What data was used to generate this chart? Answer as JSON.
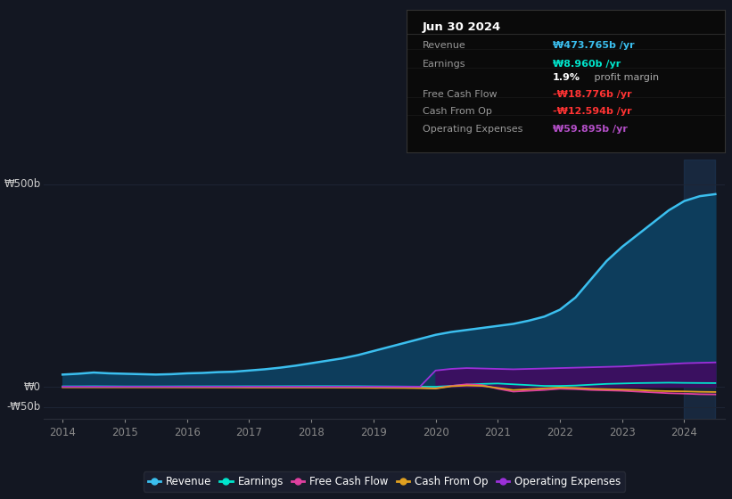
{
  "bg_color": "#131722",
  "grid_color": "#1e2535",
  "years": [
    2014.0,
    2014.25,
    2014.5,
    2014.75,
    2015.0,
    2015.25,
    2015.5,
    2015.75,
    2016.0,
    2016.25,
    2016.5,
    2016.75,
    2017.0,
    2017.25,
    2017.5,
    2017.75,
    2018.0,
    2018.25,
    2018.5,
    2018.75,
    2019.0,
    2019.25,
    2019.5,
    2019.75,
    2020.0,
    2020.25,
    2020.5,
    2020.75,
    2021.0,
    2021.25,
    2021.5,
    2021.75,
    2022.0,
    2022.25,
    2022.5,
    2022.75,
    2023.0,
    2023.25,
    2023.5,
    2023.75,
    2024.0,
    2024.25,
    2024.5
  ],
  "revenue": [
    30,
    32,
    35,
    33,
    32,
    31,
    30,
    31,
    33,
    34,
    36,
    37,
    40,
    43,
    47,
    52,
    58,
    64,
    70,
    78,
    88,
    98,
    108,
    118,
    128,
    135,
    140,
    145,
    150,
    155,
    163,
    173,
    190,
    220,
    265,
    310,
    345,
    375,
    405,
    435,
    458,
    470,
    475
  ],
  "earnings": [
    1.0,
    1.0,
    1.2,
    1.0,
    0.8,
    0.8,
    0.8,
    0.9,
    1.0,
    1.0,
    1.1,
    1.1,
    1.2,
    1.2,
    1.3,
    1.4,
    1.5,
    1.5,
    1.4,
    1.3,
    1.0,
    0.8,
    0.5,
    0.2,
    0.0,
    2.0,
    5.0,
    7.0,
    8.0,
    6.0,
    4.0,
    2.0,
    2.0,
    3.0,
    5.0,
    7.0,
    8.0,
    9.0,
    9.5,
    10.0,
    9.5,
    9.2,
    9.0
  ],
  "free_cash_flow": [
    -0.5,
    -0.5,
    -0.5,
    -0.6,
    -0.6,
    -0.6,
    -0.7,
    -0.7,
    -0.8,
    -0.8,
    -0.9,
    -0.9,
    -1.0,
    -1.0,
    -1.0,
    -1.0,
    -1.0,
    -1.0,
    -1.1,
    -1.2,
    -1.5,
    -1.8,
    -2.0,
    -2.5,
    -4.0,
    2.0,
    6.0,
    4.0,
    -5.0,
    -12.0,
    -10.0,
    -8.0,
    -5.0,
    -6.0,
    -8.0,
    -9.0,
    -10.0,
    -12.0,
    -14.0,
    -16.0,
    -17.0,
    -18.5,
    -19.0
  ],
  "cash_from_op": [
    -1.5,
    -1.5,
    -1.5,
    -1.5,
    -1.5,
    -1.5,
    -1.5,
    -1.6,
    -1.6,
    -1.7,
    -1.7,
    -1.8,
    -2.0,
    -2.0,
    -2.0,
    -2.0,
    -2.0,
    -2.0,
    -2.1,
    -2.2,
    -2.5,
    -2.8,
    -3.0,
    -3.5,
    -4.5,
    1.0,
    3.0,
    2.0,
    -3.0,
    -8.0,
    -6.0,
    -4.0,
    -2.0,
    -3.0,
    -5.0,
    -6.0,
    -7.0,
    -8.0,
    -10.0,
    -11.0,
    -11.5,
    -12.5,
    -13.0
  ],
  "operating_expenses": [
    0.3,
    0.3,
    0.3,
    0.3,
    0.3,
    0.3,
    0.3,
    0.3,
    0.3,
    0.3,
    0.3,
    0.3,
    0.3,
    0.3,
    0.3,
    0.3,
    0.3,
    0.3,
    0.3,
    0.3,
    0.3,
    0.3,
    0.3,
    0.3,
    40.0,
    44.0,
    46.0,
    45.0,
    44.0,
    43.0,
    44.0,
    45.0,
    46.0,
    47.0,
    48.0,
    49.0,
    50.0,
    52.0,
    54.0,
    56.0,
    58.0,
    59.0,
    60.0
  ],
  "revenue_color": "#3bbfef",
  "revenue_fill": "#0d3d5c",
  "earnings_color": "#00e5cc",
  "fcf_color": "#e040a0",
  "cfo_color": "#e0a020",
  "opex_color": "#9b30d9",
  "opex_fill": "#3a1060",
  "highlight_x_start": 2024.0,
  "highlight_x_end": 2024.5,
  "highlight_color": "#1e3a5a",
  "ylim": [
    -80,
    560
  ],
  "xlim_left": 2013.7,
  "xlim_right": 2024.65,
  "ytick_positions": [
    500,
    0,
    -50
  ],
  "ytick_labels": [
    "₩500b",
    "₩0",
    "-₩50b"
  ],
  "xtick_years": [
    2014,
    2015,
    2016,
    2017,
    2018,
    2019,
    2020,
    2021,
    2022,
    2023,
    2024
  ],
  "legend_names": [
    "Revenue",
    "Earnings",
    "Free Cash Flow",
    "Cash From Op",
    "Operating Expenses"
  ],
  "legend_colors": [
    "#3bbfef",
    "#00e5cc",
    "#e040a0",
    "#e0a020",
    "#9b30d9"
  ],
  "tooltip_date": "Jun 30 2024",
  "tooltip_rows": [
    {
      "label": "Revenue",
      "value": "₩473.765b /yr",
      "vcolor": "#3bbfef",
      "bold_prefix": ""
    },
    {
      "label": "Earnings",
      "value": "₩8.960b /yr",
      "vcolor": "#00e5cc",
      "bold_prefix": ""
    },
    {
      "label": "",
      "value": "",
      "vcolor": "#ffffff",
      "bold_prefix": "1.9%",
      "suffix": " profit margin"
    },
    {
      "label": "Free Cash Flow",
      "value": "-₩18.776b /yr",
      "vcolor": "#ff3333",
      "bold_prefix": ""
    },
    {
      "label": "Cash From Op",
      "value": "-₩12.594b /yr",
      "vcolor": "#ff3333",
      "bold_prefix": ""
    },
    {
      "label": "Operating Expenses",
      "value": "₩59.895b /yr",
      "vcolor": "#b44fc8",
      "bold_prefix": ""
    }
  ]
}
